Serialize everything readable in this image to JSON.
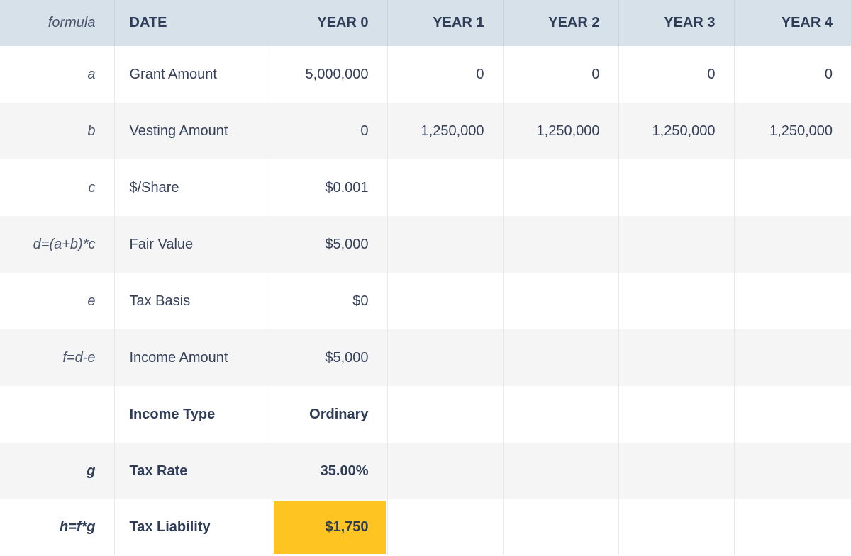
{
  "header": {
    "formula": "formula",
    "date": "DATE",
    "years": [
      "YEAR 0",
      "YEAR 1",
      "YEAR 2",
      "YEAR 3",
      "YEAR 4"
    ]
  },
  "rows": [
    {
      "formula": "a",
      "label": "Grant Amount",
      "values": [
        "5,000,000",
        "0",
        "0",
        "0",
        "0"
      ]
    },
    {
      "formula": "b",
      "label": "Vesting Amount",
      "values": [
        "0",
        "1,250,000",
        "1,250,000",
        "1,250,000",
        "1,250,000"
      ]
    },
    {
      "formula": "c",
      "label": "$/Share",
      "values": [
        "$0.001",
        "",
        "",
        "",
        ""
      ]
    },
    {
      "formula": "d=(a+b)*c",
      "label": "Fair Value",
      "values": [
        "$5,000",
        "",
        "",
        "",
        ""
      ]
    },
    {
      "formula": "e",
      "label": "Tax Basis",
      "values": [
        "$0",
        "",
        "",
        "",
        ""
      ]
    },
    {
      "formula": "f=d-e",
      "label": "Income Amount",
      "values": [
        "$5,000",
        "",
        "",
        "",
        ""
      ]
    },
    {
      "formula": "",
      "label": "Income Type",
      "values": [
        "Ordinary",
        "",
        "",
        "",
        ""
      ]
    },
    {
      "formula": "g",
      "label": "Tax Rate",
      "values": [
        "35.00%",
        "",
        "",
        "",
        ""
      ]
    },
    {
      "formula": "h=f*g",
      "label": "Tax Liability",
      "values": [
        "$1,750",
        "",
        "",
        "",
        ""
      ]
    }
  ],
  "colors": {
    "header_background": "#d6e1ea",
    "stripe_background": "#f5f5f5",
    "highlight": "#fec421",
    "text": "#34405a"
  }
}
